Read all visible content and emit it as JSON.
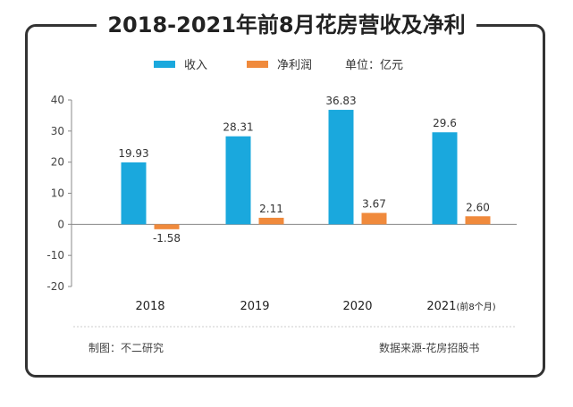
{
  "title": "2018-2021年前8月花房营收及净利",
  "legend": {
    "revenue": "收入",
    "net_profit": "净利润",
    "unit": "单位：亿元"
  },
  "footer": {
    "credit": "制图：不二研究",
    "source": "数据来源-花房招股书"
  },
  "colors": {
    "revenue": "#1aa8dd",
    "net_profit": "#f08a3c",
    "frame": "#333333"
  },
  "chart_data": {
    "type": "bar",
    "categories": [
      "2018",
      "2019",
      "2020",
      "2021"
    ],
    "category_note": [
      "",
      "",
      "",
      "(前8个月)"
    ],
    "series": [
      {
        "name": "收入",
        "values": [
          19.93,
          28.31,
          36.83,
          29.6
        ],
        "labels": [
          "19.93",
          "28.31",
          "36.83",
          "29.6"
        ]
      },
      {
        "name": "净利润",
        "values": [
          -1.58,
          2.11,
          3.67,
          2.6
        ],
        "labels": [
          "-1.58",
          "2.11",
          "3.67",
          "2.60"
        ]
      }
    ],
    "yticks": [
      40,
      30,
      20,
      10,
      0,
      -10,
      -20
    ],
    "ylim": [
      -20,
      40
    ],
    "grid": false,
    "legend_position": "top"
  }
}
